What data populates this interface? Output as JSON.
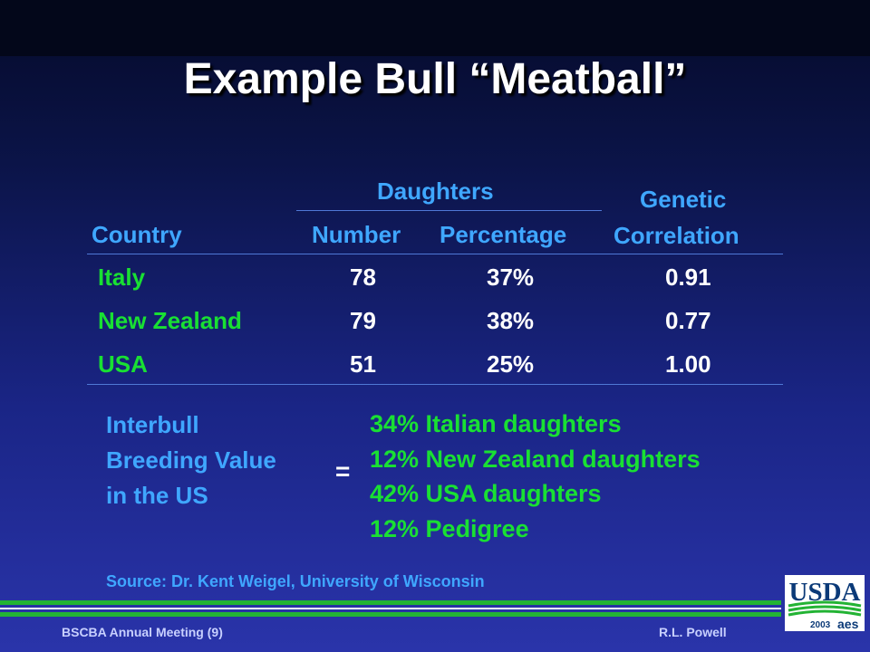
{
  "slide": {
    "title": "Example Bull “Meatball”"
  },
  "table": {
    "headers": {
      "country": "Country",
      "daughters": "Daughters",
      "number": "Number",
      "percentage": "Percentage",
      "genetic_line1": "Genetic",
      "genetic_line2": "Correlation"
    },
    "rows": [
      {
        "country": "Italy",
        "number": "78",
        "percentage": "37%",
        "correlation": "0.91"
      },
      {
        "country": "New Zealand",
        "number": "79",
        "percentage": "38%",
        "correlation": "0.77"
      },
      {
        "country": "USA",
        "number": "51",
        "percentage": "25%",
        "correlation": "1.00"
      }
    ]
  },
  "interbull": {
    "label_lines": [
      "Interbull",
      "Breeding Value",
      "in the US"
    ],
    "equals": "=",
    "components": [
      "34% Italian daughters",
      "12% New Zealand daughters",
      "42% USA daughters",
      "12% Pedigree"
    ]
  },
  "source": "Source: Dr. Kent Weigel, University of Wisconsin",
  "footer": {
    "left": "BSCBA Annual Meeting (9)",
    "right": "R.L. Powell"
  },
  "logo": {
    "text": "USDA",
    "year": "2003",
    "badge": "aes"
  },
  "colors": {
    "header_blue": "#3fa7ff",
    "country_green": "#19e033",
    "value_white": "#ffffff",
    "rule_green": "#23b334",
    "usda_blue": "#0b3a78"
  }
}
